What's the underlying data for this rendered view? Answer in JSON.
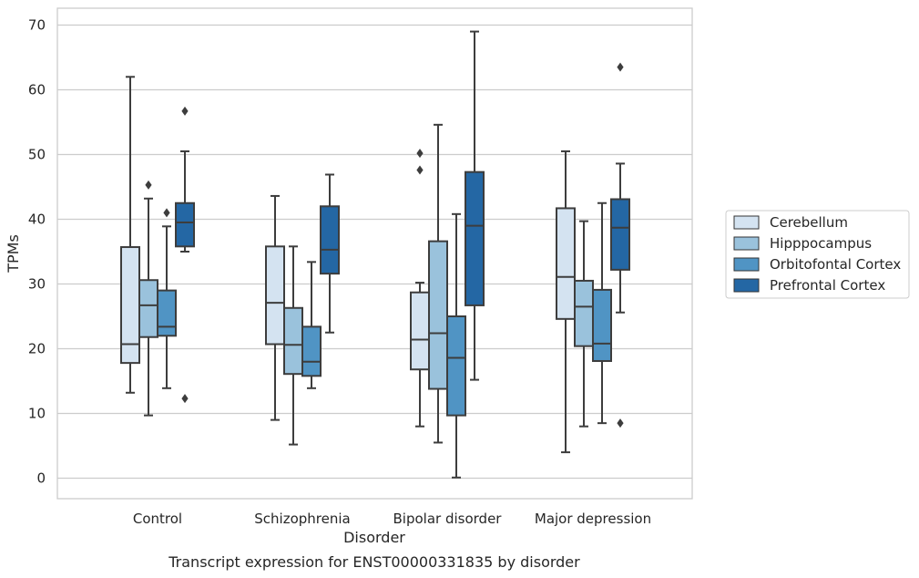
{
  "caption": "Transcript expression for ENST00000331835 by disorder",
  "chart_data": {
    "type": "box",
    "title": "",
    "xlabel": "Disorder",
    "ylabel": "TPMs",
    "ylim": [
      -3.3,
      72.5
    ],
    "yticks": [
      0,
      10,
      20,
      30,
      40,
      50,
      60,
      70
    ],
    "grid": "horizontal",
    "legend_position": "right",
    "categories": [
      "Control",
      "Schizophrenia",
      "Bipolar disorder",
      "Major depression"
    ],
    "series": [
      {
        "name": "Cerebellum",
        "color": "#d4e3f1",
        "boxes": [
          {
            "whislo": 13.2,
            "q1": 17.8,
            "med": 20.7,
            "q3": 35.7,
            "whishi": 62.0,
            "fliers": []
          },
          {
            "whislo": 9.0,
            "q1": 20.7,
            "med": 27.1,
            "q3": 35.8,
            "whishi": 43.6,
            "fliers": []
          },
          {
            "whislo": 8.0,
            "q1": 16.8,
            "med": 21.4,
            "q3": 28.7,
            "whishi": 30.2,
            "fliers": [
              47.6,
              50.2
            ]
          },
          {
            "whislo": 4.0,
            "q1": 24.6,
            "med": 31.1,
            "q3": 41.7,
            "whishi": 50.5,
            "fliers": []
          }
        ]
      },
      {
        "name": "Hipppocampus",
        "color": "#9ac2dc",
        "boxes": [
          {
            "whislo": 9.7,
            "q1": 21.8,
            "med": 26.7,
            "q3": 30.6,
            "whishi": 43.2,
            "fliers": [
              45.3
            ]
          },
          {
            "whislo": 5.2,
            "q1": 16.1,
            "med": 20.6,
            "q3": 26.3,
            "whishi": 35.8,
            "fliers": []
          },
          {
            "whislo": 5.5,
            "q1": 13.8,
            "med": 22.4,
            "q3": 36.6,
            "whishi": 54.6,
            "fliers": []
          },
          {
            "whislo": 8.0,
            "q1": 20.4,
            "med": 26.5,
            "q3": 30.5,
            "whishi": 39.7,
            "fliers": []
          }
        ]
      },
      {
        "name": "Orbitofontal Cortex",
        "color": "#5094c4",
        "boxes": [
          {
            "whislo": 13.9,
            "q1": 22.0,
            "med": 23.4,
            "q3": 29.0,
            "whishi": 38.9,
            "fliers": [
              41.0
            ]
          },
          {
            "whislo": 13.9,
            "q1": 15.8,
            "med": 18.0,
            "q3": 23.4,
            "whishi": 33.4,
            "fliers": []
          },
          {
            "whislo": 0.1,
            "q1": 9.7,
            "med": 18.6,
            "q3": 25.0,
            "whishi": 40.8,
            "fliers": []
          },
          {
            "whislo": 8.5,
            "q1": 18.1,
            "med": 20.8,
            "q3": 29.1,
            "whishi": 42.5,
            "fliers": []
          }
        ]
      },
      {
        "name": "Prefrontal Cortex",
        "color": "#2467a4",
        "boxes": [
          {
            "whislo": 35.0,
            "q1": 35.8,
            "med": 39.5,
            "q3": 42.5,
            "whishi": 50.5,
            "fliers": [
              12.3,
              56.7
            ]
          },
          {
            "whislo": 22.5,
            "q1": 31.6,
            "med": 35.3,
            "q3": 42.0,
            "whishi": 46.9,
            "fliers": []
          },
          {
            "whislo": 15.2,
            "q1": 26.7,
            "med": 39.0,
            "q3": 47.3,
            "whishi": 69.0,
            "fliers": []
          },
          {
            "whislo": 25.6,
            "q1": 32.2,
            "med": 38.7,
            "q3": 43.1,
            "whishi": 48.6,
            "fliers": [
              8.5,
              63.5
            ]
          }
        ]
      }
    ]
  }
}
